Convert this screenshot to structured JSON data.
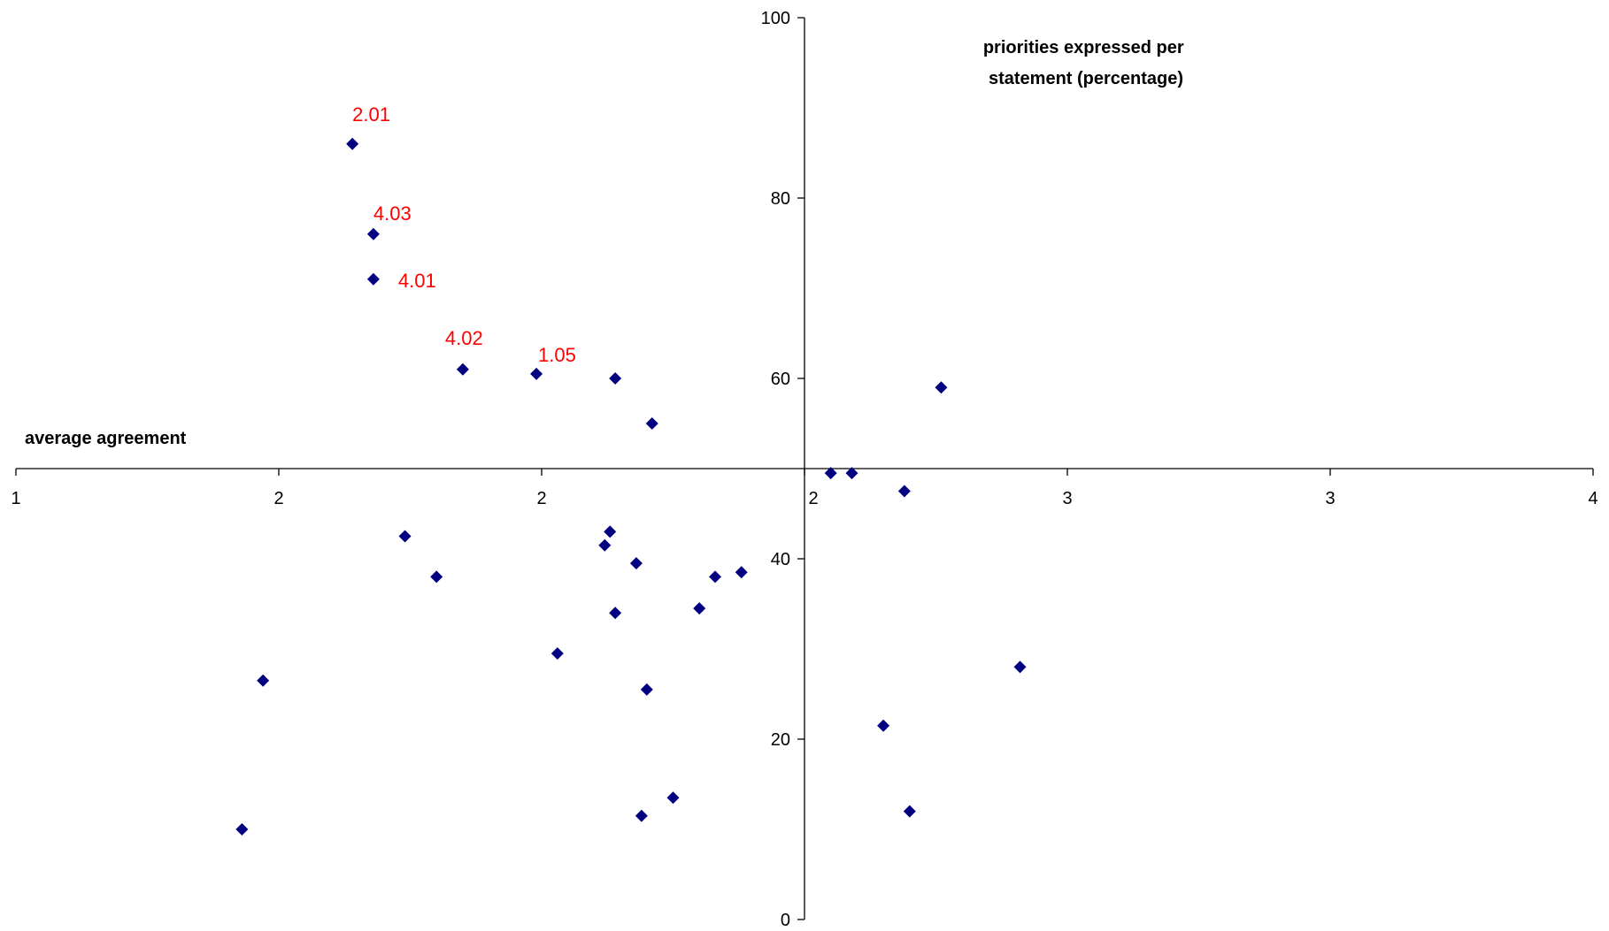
{
  "chart_data": {
    "type": "scatter",
    "xlabel": "average agreement",
    "ylabel_lines": [
      "priorities expressed per",
      "statement (percentage)"
    ],
    "xlim": [
      1,
      4
    ],
    "ylim": [
      0,
      100
    ],
    "x_tick_values": [
      1,
      1.5,
      2,
      2.5,
      3,
      3.5,
      4
    ],
    "x_tick_labels": [
      "1",
      "2",
      "2",
      "3",
      "3",
      "4"
    ],
    "x_tick_labels_full": [
      "1",
      "2",
      "2",
      "2",
      "3",
      "3",
      "4"
    ],
    "y_tick_values": [
      0,
      20,
      40,
      60,
      80,
      100
    ],
    "y_tick_labels": [
      "0",
      "20",
      "40",
      "60",
      "80",
      "100"
    ],
    "crosses_at": {
      "x": 2.5,
      "y": 50
    },
    "marker_color": "#000080",
    "annotation_color": "#ff0000",
    "points": [
      {
        "x": 1.64,
        "y": 86
      },
      {
        "x": 1.68,
        "y": 76
      },
      {
        "x": 1.68,
        "y": 71
      },
      {
        "x": 1.85,
        "y": 61
      },
      {
        "x": 1.99,
        "y": 60.5
      },
      {
        "x": 2.14,
        "y": 60
      },
      {
        "x": 2.21,
        "y": 55
      },
      {
        "x": 2.76,
        "y": 59
      },
      {
        "x": 2.55,
        "y": 49.5
      },
      {
        "x": 2.59,
        "y": 49.5
      },
      {
        "x": 2.69,
        "y": 47.5
      },
      {
        "x": 1.74,
        "y": 42.5
      },
      {
        "x": 1.8,
        "y": 38
      },
      {
        "x": 2.12,
        "y": 41.5
      },
      {
        "x": 2.13,
        "y": 43
      },
      {
        "x": 2.18,
        "y": 39.5
      },
      {
        "x": 2.33,
        "y": 38
      },
      {
        "x": 2.38,
        "y": 38.5
      },
      {
        "x": 2.3,
        "y": 34.5
      },
      {
        "x": 2.14,
        "y": 34
      },
      {
        "x": 2.03,
        "y": 29.5
      },
      {
        "x": 2.2,
        "y": 25.5
      },
      {
        "x": 1.47,
        "y": 26.5
      },
      {
        "x": 1.43,
        "y": 10
      },
      {
        "x": 2.25,
        "y": 13.5
      },
      {
        "x": 2.19,
        "y": 11.5
      },
      {
        "x": 2.65,
        "y": 21.5
      },
      {
        "x": 2.7,
        "y": 12
      },
      {
        "x": 2.91,
        "y": 28
      }
    ],
    "annotations": [
      {
        "text": "2.01",
        "point": 0
      },
      {
        "text": "4.03",
        "point": 1
      },
      {
        "text": "4.01",
        "point": 2
      },
      {
        "text": "4.02",
        "point": 3
      },
      {
        "text": "1.05",
        "point": 4
      }
    ]
  }
}
